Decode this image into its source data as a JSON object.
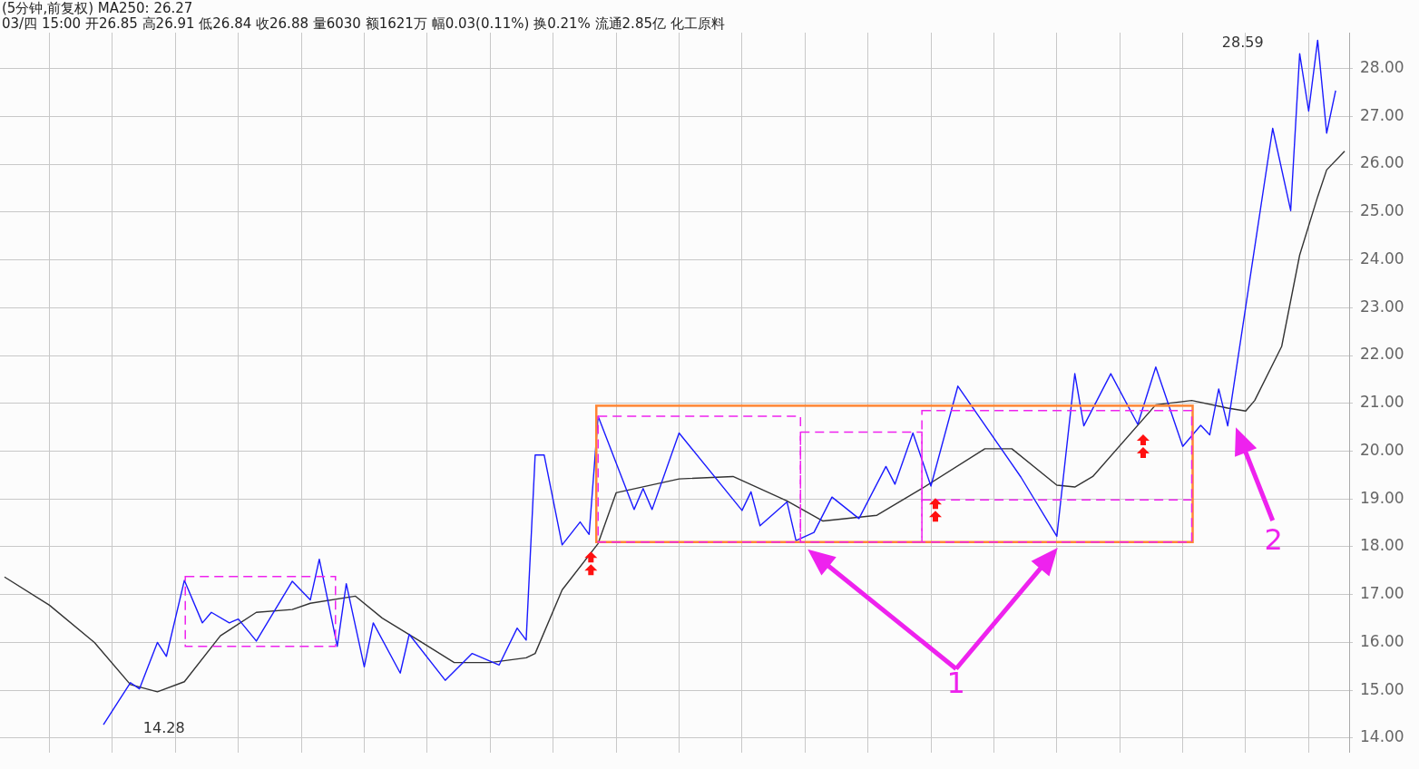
{
  "chart_data": {
    "type": "line",
    "title": "(5分钟,前复权) MA250: 26.27",
    "subtitle": "03/四 15:00 开26.85 高26.91 低26.84 收26.88 量6030 额1621万 幅0.03(0.11%) 换0.21% 流通2.85亿 化工原料",
    "categories": [
      null,
      null,
      null,
      null,
      null,
      null,
      null,
      null,
      null,
      null,
      null,
      null,
      null,
      null,
      null,
      null,
      null,
      null,
      null,
      null,
      null,
      null,
      null,
      null,
      null,
      null,
      null,
      null,
      null,
      null,
      null,
      null,
      null,
      null,
      null,
      null,
      null,
      null,
      null,
      null,
      null,
      null,
      null,
      null,
      null,
      null,
      null,
      null,
      null,
      null,
      null,
      null,
      null,
      null,
      null,
      null,
      null,
      null,
      null,
      null,
      null,
      null,
      null,
      null,
      null,
      null,
      null,
      null,
      null,
      null,
      null,
      null,
      null,
      null,
      null,
      null,
      null,
      null,
      null,
      null,
      null,
      null,
      null,
      null,
      null,
      null,
      null,
      null,
      null,
      null,
      null,
      null,
      null,
      null,
      null,
      null,
      null,
      null,
      null,
      null,
      null,
      null,
      null,
      null,
      null,
      null,
      null,
      null,
      null,
      null,
      null,
      null,
      null,
      null,
      null,
      null,
      null,
      null,
      null,
      null,
      null,
      null,
      null,
      null,
      null,
      null,
      null,
      null,
      null,
      null,
      null,
      null,
      null,
      null,
      null,
      null,
      null,
      null,
      null,
      null,
      null,
      null,
      null,
      null,
      null,
      null,
      null,
      null,
      null,
      null
    ],
    "series": [
      {
        "color": "#1a1aff",
        "values": [
          null,
          null,
          null,
          null,
          null,
          null,
          null,
          null,
          null,
          null,
          null,
          14.28,
          null,
          null,
          15.16,
          15.03,
          null,
          16.0,
          15.71,
          null,
          17.3,
          null,
          16.41,
          16.63,
          null,
          16.41,
          16.49,
          null,
          16.03,
          null,
          null,
          null,
          17.28,
          null,
          16.89,
          17.74,
          null,
          15.92,
          17.23,
          null,
          15.49,
          16.41,
          null,
          null,
          15.36,
          16.17,
          null,
          null,
          null,
          15.21,
          null,
          null,
          15.77,
          null,
          null,
          15.53,
          null,
          16.3,
          16.05,
          19.92,
          19.92,
          null,
          18.04,
          null,
          18.52,
          18.26,
          20.73,
          null,
          null,
          null,
          18.78,
          19.22,
          18.78,
          null,
          null,
          20.38,
          null,
          null,
          null,
          null,
          null,
          null,
          18.76,
          19.15,
          18.44,
          null,
          null,
          18.94,
          18.13,
          null,
          18.3,
          null,
          19.04,
          null,
          null,
          18.59,
          null,
          null,
          19.68,
          19.31,
          null,
          20.38,
          null,
          19.27,
          null,
          null,
          21.36,
          null,
          null,
          null,
          null,
          null,
          null,
          19.46,
          null,
          null,
          null,
          18.22,
          null,
          21.62,
          20.53,
          null,
          null,
          21.62,
          null,
          null,
          20.56,
          null,
          21.76,
          null,
          null,
          20.1,
          null,
          20.54,
          20.34,
          21.3,
          20.53,
          null,
          null,
          null,
          null,
          26.75,
          null,
          25.03,
          28.31,
          27.11,
          28.59,
          26.65,
          27.54,
          null
        ]
      },
      {
        "color": "#333333",
        "values": [
          17.37,
          null,
          null,
          null,
          null,
          16.78,
          null,
          null,
          null,
          null,
          16.0,
          null,
          null,
          null,
          15.12,
          null,
          null,
          14.97,
          null,
          null,
          15.18,
          null,
          null,
          null,
          16.14,
          null,
          null,
          null,
          16.63,
          null,
          null,
          null,
          16.69,
          null,
          16.82,
          null,
          null,
          null,
          null,
          16.97,
          null,
          null,
          16.51,
          null,
          null,
          null,
          16.05,
          null,
          null,
          null,
          15.58,
          null,
          null,
          null,
          15.58,
          null,
          null,
          null,
          15.68,
          15.77,
          null,
          null,
          17.1,
          null,
          null,
          null,
          18.07,
          null,
          19.13,
          null,
          null,
          null,
          null,
          null,
          null,
          19.42,
          null,
          null,
          null,
          null,
          null,
          19.47,
          null,
          null,
          null,
          null,
          null,
          18.96,
          null,
          null,
          null,
          18.54,
          null,
          null,
          null,
          null,
          null,
          18.66,
          null,
          null,
          null,
          null,
          19.22,
          null,
          null,
          null,
          null,
          null,
          null,
          20.05,
          null,
          null,
          20.05,
          null,
          null,
          null,
          null,
          19.29,
          null,
          19.25,
          null,
          19.47,
          null,
          null,
          null,
          null,
          null,
          null,
          20.97,
          null,
          null,
          null,
          21.06,
          null,
          null,
          null,
          20.9,
          null,
          20.84,
          21.06,
          null,
          null,
          22.19,
          null,
          24.1,
          null,
          25.32,
          25.88,
          null,
          26.27
        ]
      }
    ],
    "ylim": [
      13.7,
      28.75
    ],
    "yticks": [
      {
        "value": 14,
        "label": "14.00"
      },
      {
        "value": 15,
        "label": "15.00"
      },
      {
        "value": 16,
        "label": "16.00"
      },
      {
        "value": 17,
        "label": "17.00"
      },
      {
        "value": 18,
        "label": "18.00"
      },
      {
        "value": 19,
        "label": "19.00"
      },
      {
        "value": 20,
        "label": "20.00"
      },
      {
        "value": 21,
        "label": "21.00"
      },
      {
        "value": 22,
        "label": "22.00"
      },
      {
        "value": 23,
        "label": "23.00"
      },
      {
        "value": 24,
        "label": "24.00"
      },
      {
        "value": 25,
        "label": "25.00"
      },
      {
        "value": 26,
        "label": "26.00"
      },
      {
        "value": 27,
        "label": "27.00"
      },
      {
        "value": 28,
        "label": "28.00"
      }
    ],
    "tick_labels": "y",
    "grid": true,
    "legend": false,
    "marker": "none",
    "line_style": "solid",
    "annotations": [
      "28.59",
      "14.28",
      "1",
      "2"
    ]
  }
}
